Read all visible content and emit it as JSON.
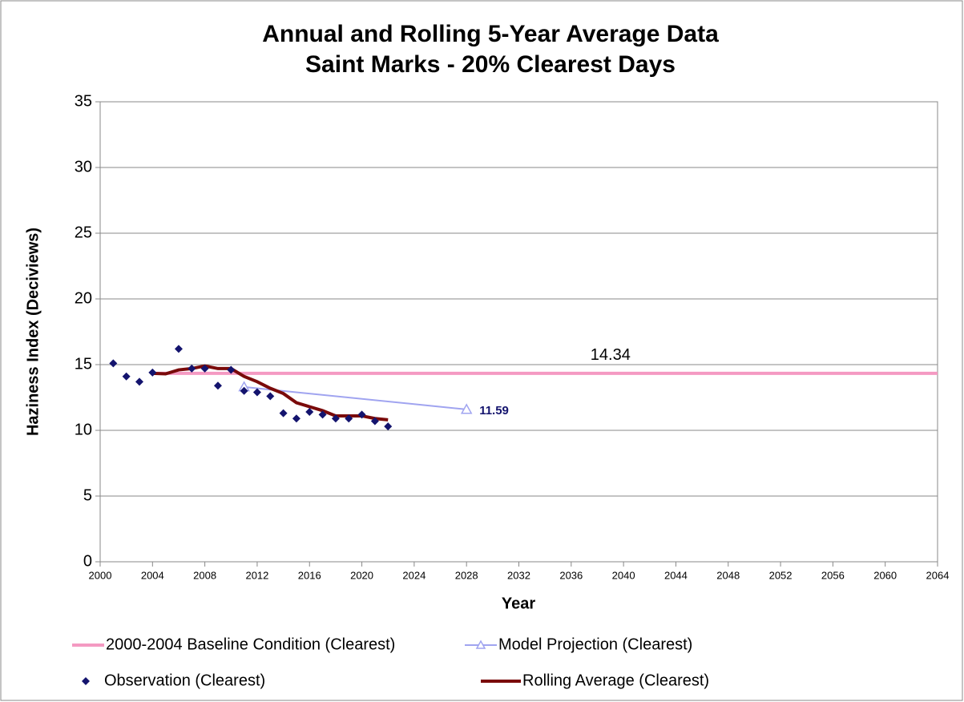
{
  "chart_data": {
    "type": "line",
    "title": "Annual and Rolling 5-Year Average Data",
    "subtitle": "Saint Marks - 20% Clearest Days",
    "x_label": "Year",
    "y_label": "Haziness Index (Deciviews)",
    "xlim": [
      2000,
      2064
    ],
    "xticks": [
      2000,
      2004,
      2008,
      2012,
      2016,
      2020,
      2024,
      2028,
      2032,
      2036,
      2040,
      2044,
      2048,
      2052,
      2056,
      2060,
      2064
    ],
    "ylim": [
      0,
      35
    ],
    "yticks": [
      0,
      5,
      10,
      15,
      20,
      25,
      30,
      35
    ],
    "grid": true,
    "series": [
      {
        "name": "2000-2004 Baseline Condition (Clearest)",
        "color": "#f49ac2",
        "style": "line",
        "x": [
          2004,
          2064
        ],
        "values": [
          14.34,
          14.34
        ]
      },
      {
        "name": "Model Projection (Clearest)",
        "color": "#a0a4f0",
        "style": "line-triangle",
        "x": [
          2011,
          2028
        ],
        "values": [
          13.3,
          11.59
        ]
      },
      {
        "name": "Observation (Clearest)",
        "color": "#14146e",
        "style": "diamond",
        "x": [
          2001,
          2002,
          2003,
          2004,
          2006,
          2007,
          2008,
          2009,
          2010,
          2011,
          2012,
          2013,
          2014,
          2015,
          2016,
          2017,
          2018,
          2019,
          2020,
          2021,
          2022
        ],
        "values": [
          15.1,
          14.1,
          13.7,
          14.4,
          16.2,
          14.7,
          14.7,
          13.4,
          14.6,
          13.0,
          12.9,
          12.6,
          11.3,
          10.9,
          11.4,
          11.2,
          10.9,
          10.9,
          11.2,
          10.7,
          10.3
        ]
      },
      {
        "name": "Rolling Average (Clearest)",
        "color": "#7a0a0a",
        "style": "thick-line",
        "x": [
          2004,
          2005,
          2006,
          2007,
          2008,
          2009,
          2010,
          2011,
          2012,
          2013,
          2014,
          2015,
          2016,
          2017,
          2018,
          2019,
          2020,
          2021,
          2022
        ],
        "values": [
          14.34,
          14.3,
          14.6,
          14.7,
          14.9,
          14.7,
          14.7,
          14.1,
          13.7,
          13.2,
          12.8,
          12.1,
          11.8,
          11.5,
          11.1,
          11.1,
          11.1,
          10.9,
          10.8
        ]
      }
    ]
  }
}
